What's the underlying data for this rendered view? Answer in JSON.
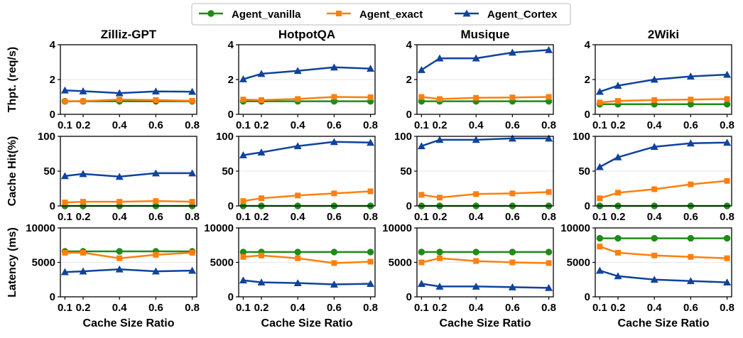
{
  "chart_data": {
    "type": "line",
    "legend": {
      "placement": "top-center",
      "entries": [
        "Agent_vanilla",
        "Agent_exact",
        "Agent_Cortex"
      ]
    },
    "series_styles": [
      {
        "name": "Agent_vanilla",
        "color": "#1f8c17",
        "marker": "circle"
      },
      {
        "name": "Agent_exact",
        "color": "#ff7f0e",
        "marker": "square"
      },
      {
        "name": "Agent_Cortex",
        "color": "#10439c",
        "marker": "triangle"
      }
    ],
    "x": [
      0.1,
      0.2,
      0.4,
      0.6,
      0.8
    ],
    "x_tick_labels": [
      "0.1",
      "0.2",
      "0.4",
      "0.6",
      "0.8"
    ],
    "xlabel": "Cache Size Ratio",
    "columns": [
      "Zilliz-GPT",
      "HotpotQA",
      "Musique",
      "2Wiki"
    ],
    "rows": [
      {
        "ylabel": "Thpt. (req/s)",
        "ylim": [
          0,
          4
        ],
        "yticks": [
          0,
          2,
          4
        ],
        "grid": true
      },
      {
        "ylabel": "Cache Hit(%)",
        "ylim": [
          0,
          100
        ],
        "yticks": [
          0,
          50,
          100
        ],
        "grid": true
      },
      {
        "ylabel": "Latency (ms)",
        "ylim": [
          0,
          10000
        ],
        "yticks": [
          0,
          5000,
          10000
        ],
        "grid": true
      }
    ],
    "panels": [
      [
        {
          "title": "Zilliz-GPT",
          "series": [
            {
              "name": "Agent_vanilla",
              "values": [
                0.75,
                0.75,
                0.75,
                0.75,
                0.75
              ]
            },
            {
              "name": "Agent_exact",
              "values": [
                0.75,
                0.76,
                0.85,
                0.82,
                0.78
              ]
            },
            {
              "name": "Agent_Cortex",
              "values": [
                1.38,
                1.33,
                1.22,
                1.32,
                1.3
              ]
            }
          ]
        },
        {
          "title": "HotpotQA",
          "series": [
            {
              "name": "Agent_vanilla",
              "values": [
                0.75,
                0.75,
                0.75,
                0.75,
                0.75
              ]
            },
            {
              "name": "Agent_exact",
              "values": [
                0.85,
                0.82,
                0.88,
                1.0,
                0.98
              ]
            },
            {
              "name": "Agent_Cortex",
              "values": [
                2.02,
                2.33,
                2.5,
                2.7,
                2.63
              ]
            }
          ]
        },
        {
          "title": "Musique",
          "series": [
            {
              "name": "Agent_vanilla",
              "values": [
                0.75,
                0.75,
                0.75,
                0.75,
                0.75
              ]
            },
            {
              "name": "Agent_exact",
              "values": [
                1.0,
                0.88,
                0.95,
                0.97,
                1.0
              ]
            },
            {
              "name": "Agent_Cortex",
              "values": [
                2.55,
                3.22,
                3.22,
                3.55,
                3.7
              ]
            }
          ]
        },
        {
          "title": "2Wiki",
          "series": [
            {
              "name": "Agent_vanilla",
              "values": [
                0.58,
                0.58,
                0.58,
                0.58,
                0.58
              ]
            },
            {
              "name": "Agent_exact",
              "values": [
                0.68,
                0.77,
                0.82,
                0.85,
                0.88
              ]
            },
            {
              "name": "Agent_Cortex",
              "values": [
                1.3,
                1.65,
                2.0,
                2.18,
                2.28
              ]
            }
          ]
        }
      ],
      [
        {
          "title": "Zilliz-GPT",
          "series": [
            {
              "name": "Agent_vanilla",
              "values": [
                0,
                0,
                0,
                0,
                0
              ]
            },
            {
              "name": "Agent_exact",
              "values": [
                5,
                6,
                6,
                7,
                6
              ]
            },
            {
              "name": "Agent_Cortex",
              "values": [
                43,
                46,
                42,
                47,
                47
              ]
            }
          ]
        },
        {
          "title": "HotpotQA",
          "series": [
            {
              "name": "Agent_vanilla",
              "values": [
                0,
                0,
                0,
                0,
                0
              ]
            },
            {
              "name": "Agent_exact",
              "values": [
                7,
                11,
                15,
                18,
                21
              ]
            },
            {
              "name": "Agent_Cortex",
              "values": [
                73,
                77,
                86,
                92,
                91
              ]
            }
          ]
        },
        {
          "title": "Musique",
          "series": [
            {
              "name": "Agent_vanilla",
              "values": [
                0,
                0,
                0,
                0,
                0
              ]
            },
            {
              "name": "Agent_exact",
              "values": [
                16,
                12,
                17,
                18,
                20
              ]
            },
            {
              "name": "Agent_Cortex",
              "values": [
                86,
                95,
                95,
                97,
                97
              ]
            }
          ]
        },
        {
          "title": "2Wiki",
          "series": [
            {
              "name": "Agent_vanilla",
              "values": [
                0,
                0,
                0,
                0,
                0
              ]
            },
            {
              "name": "Agent_exact",
              "values": [
                11,
                19,
                24,
                31,
                36
              ]
            },
            {
              "name": "Agent_Cortex",
              "values": [
                56,
                70,
                85,
                90,
                91
              ]
            }
          ]
        }
      ],
      [
        {
          "title": "Zilliz-GPT",
          "series": [
            {
              "name": "Agent_vanilla",
              "values": [
                6600,
                6600,
                6600,
                6600,
                6600
              ]
            },
            {
              "name": "Agent_exact",
              "values": [
                6400,
                6400,
                5600,
                6100,
                6400
              ]
            },
            {
              "name": "Agent_Cortex",
              "values": [
                3600,
                3700,
                4000,
                3700,
                3800
              ]
            }
          ]
        },
        {
          "title": "HotpotQA",
          "series": [
            {
              "name": "Agent_vanilla",
              "values": [
                6500,
                6500,
                6500,
                6500,
                6500
              ]
            },
            {
              "name": "Agent_exact",
              "values": [
                5800,
                6000,
                5600,
                4900,
                5100
              ]
            },
            {
              "name": "Agent_Cortex",
              "values": [
                2400,
                2100,
                2000,
                1800,
                1900
              ]
            }
          ]
        },
        {
          "title": "Musique",
          "series": [
            {
              "name": "Agent_vanilla",
              "values": [
                6500,
                6500,
                6500,
                6500,
                6500
              ]
            },
            {
              "name": "Agent_exact",
              "values": [
                5000,
                5600,
                5200,
                5000,
                4900
              ]
            },
            {
              "name": "Agent_Cortex",
              "values": [
                1900,
                1500,
                1500,
                1400,
                1300
              ]
            }
          ]
        },
        {
          "title": "2Wiki",
          "series": [
            {
              "name": "Agent_vanilla",
              "values": [
                8500,
                8500,
                8500,
                8500,
                8500
              ]
            },
            {
              "name": "Agent_exact",
              "values": [
                7300,
                6400,
                6000,
                5800,
                5600
              ]
            },
            {
              "name": "Agent_Cortex",
              "values": [
                3800,
                3000,
                2500,
                2300,
                2100
              ]
            }
          ]
        }
      ]
    ]
  }
}
